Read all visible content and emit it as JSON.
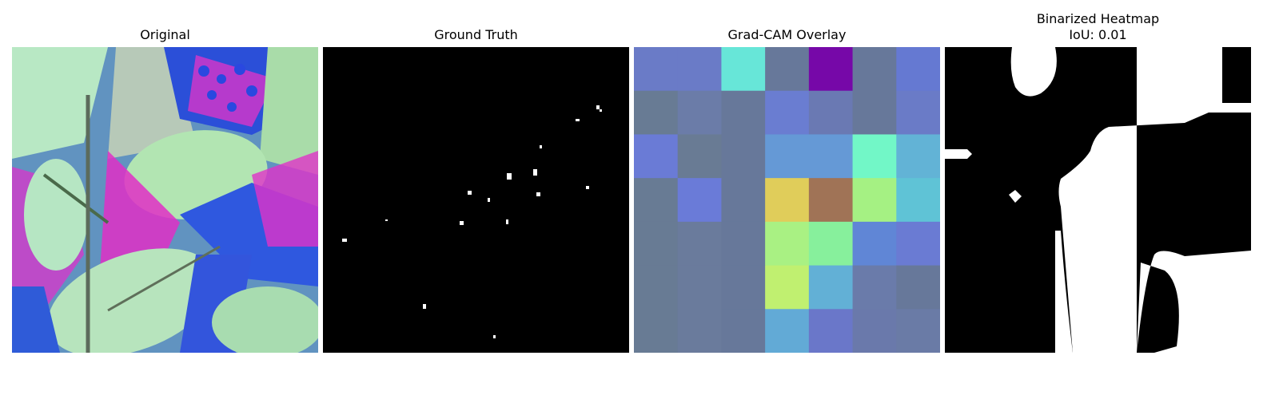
{
  "panels": [
    {
      "title": "Original"
    },
    {
      "title": "Ground Truth"
    },
    {
      "title": "Grad-CAM Overlay"
    },
    {
      "title": "Binarized Heatmap",
      "subtitle": "IoU: 0.01"
    }
  ],
  "gradcam_grid": [
    [
      "#6a7bc7",
      "#6a7bc7",
      "#67e6d8",
      "#67789a",
      "#7608a8",
      "#67789a",
      "#6579d2"
    ],
    [
      "#687b94",
      "#6b7ca8",
      "#67789a",
      "#6a7dd1",
      "#6a79b3",
      "#67789a",
      "#6a7bc7"
    ],
    [
      "#6a7bd6",
      "#697b94",
      "#67789a",
      "#6599d6",
      "#6599d6",
      "#72f7c7",
      "#62b3d6"
    ],
    [
      "#687b94",
      "#6a7bd8",
      "#67789a",
      "#e0cd5a",
      "#a07356",
      "#a5f183",
      "#5fc3d6"
    ],
    [
      "#687b94",
      "#6a7b9c",
      "#67789a",
      "#a9f183",
      "#87f09c",
      "#6086d6",
      "#6a7bd3"
    ],
    [
      "#687b94",
      "#6a7b9c",
      "#67789a",
      "#c0f070",
      "#62b0d6",
      "#6a7baa",
      "#67789a"
    ],
    [
      "#687b94",
      "#6a7b9c",
      "#67789a",
      "#62aad6",
      "#6a77c9",
      "#6a79ab",
      "#6a7ba6"
    ]
  ]
}
